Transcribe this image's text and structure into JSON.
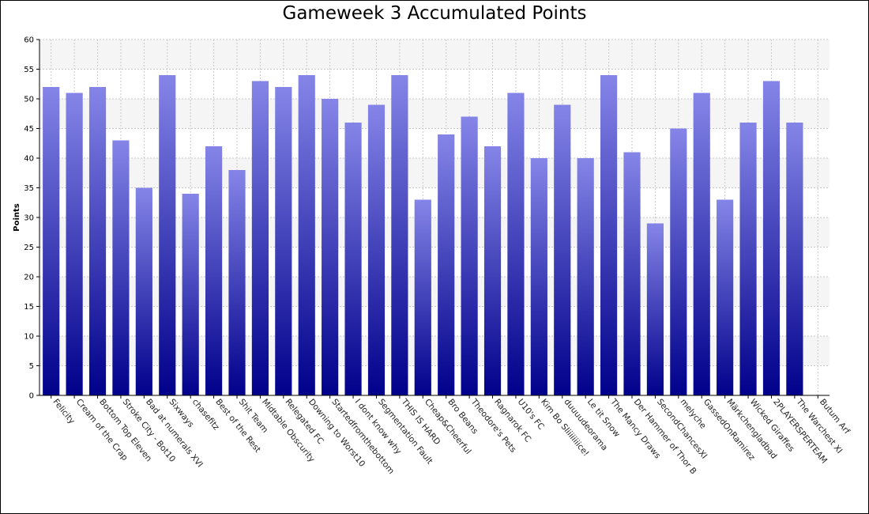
{
  "chart_data": {
    "type": "bar",
    "title": "Gameweek 3 Accumulated Points",
    "xlabel": "",
    "ylabel": "Points",
    "ylim": [
      0,
      60
    ],
    "yticks": [
      0,
      5,
      10,
      15,
      20,
      25,
      30,
      35,
      40,
      45,
      50,
      55,
      60
    ],
    "grid": true,
    "legend": "none",
    "categories": [
      "Felicity",
      "Cream of the Crap",
      "Bottom Top Eleven",
      "Stroke City - Bot10",
      "Bad at numerals XVI",
      "Sixways",
      "chasefitz",
      "Best of the Rest",
      "Shit Team",
      "Midtable Obscurity",
      "Relegated FC",
      "Downing to Worst10",
      "Startedfromthebottom",
      "I dont know why",
      "Segmentation Fault",
      "THIS IS HARD",
      "Cheap&Cheerful",
      "Bro Beans",
      "Theodore's Pets",
      "Ragnarok FC",
      "U10's FC",
      "Kim Bo Sliiiiiiiice!",
      "duuuudeorama",
      "Le tit Snow",
      "The Mancy Draws",
      "Der Hammer of Thor B",
      "SecondChancesXI",
      "melyche",
      "GassedOnRamirez",
      "Märkchengladbad",
      "Wicked Giraffes",
      "2PLAYERSPERTEAM",
      "The Warchest XI",
      "Butum Arf"
    ],
    "values": [
      52,
      51,
      52,
      43,
      35,
      54,
      34,
      42,
      38,
      53,
      52,
      54,
      50,
      46,
      49,
      54,
      33,
      44,
      47,
      42,
      51,
      40,
      49,
      40,
      54,
      41,
      29,
      45,
      51,
      33,
      46,
      53,
      46,
      0
    ],
    "colors": {
      "bar_top": "#8585e8",
      "bar_bottom": "#00008b",
      "band": "#f5f5f5",
      "grid": "#c8c8c8",
      "axis": "#000000"
    }
  }
}
